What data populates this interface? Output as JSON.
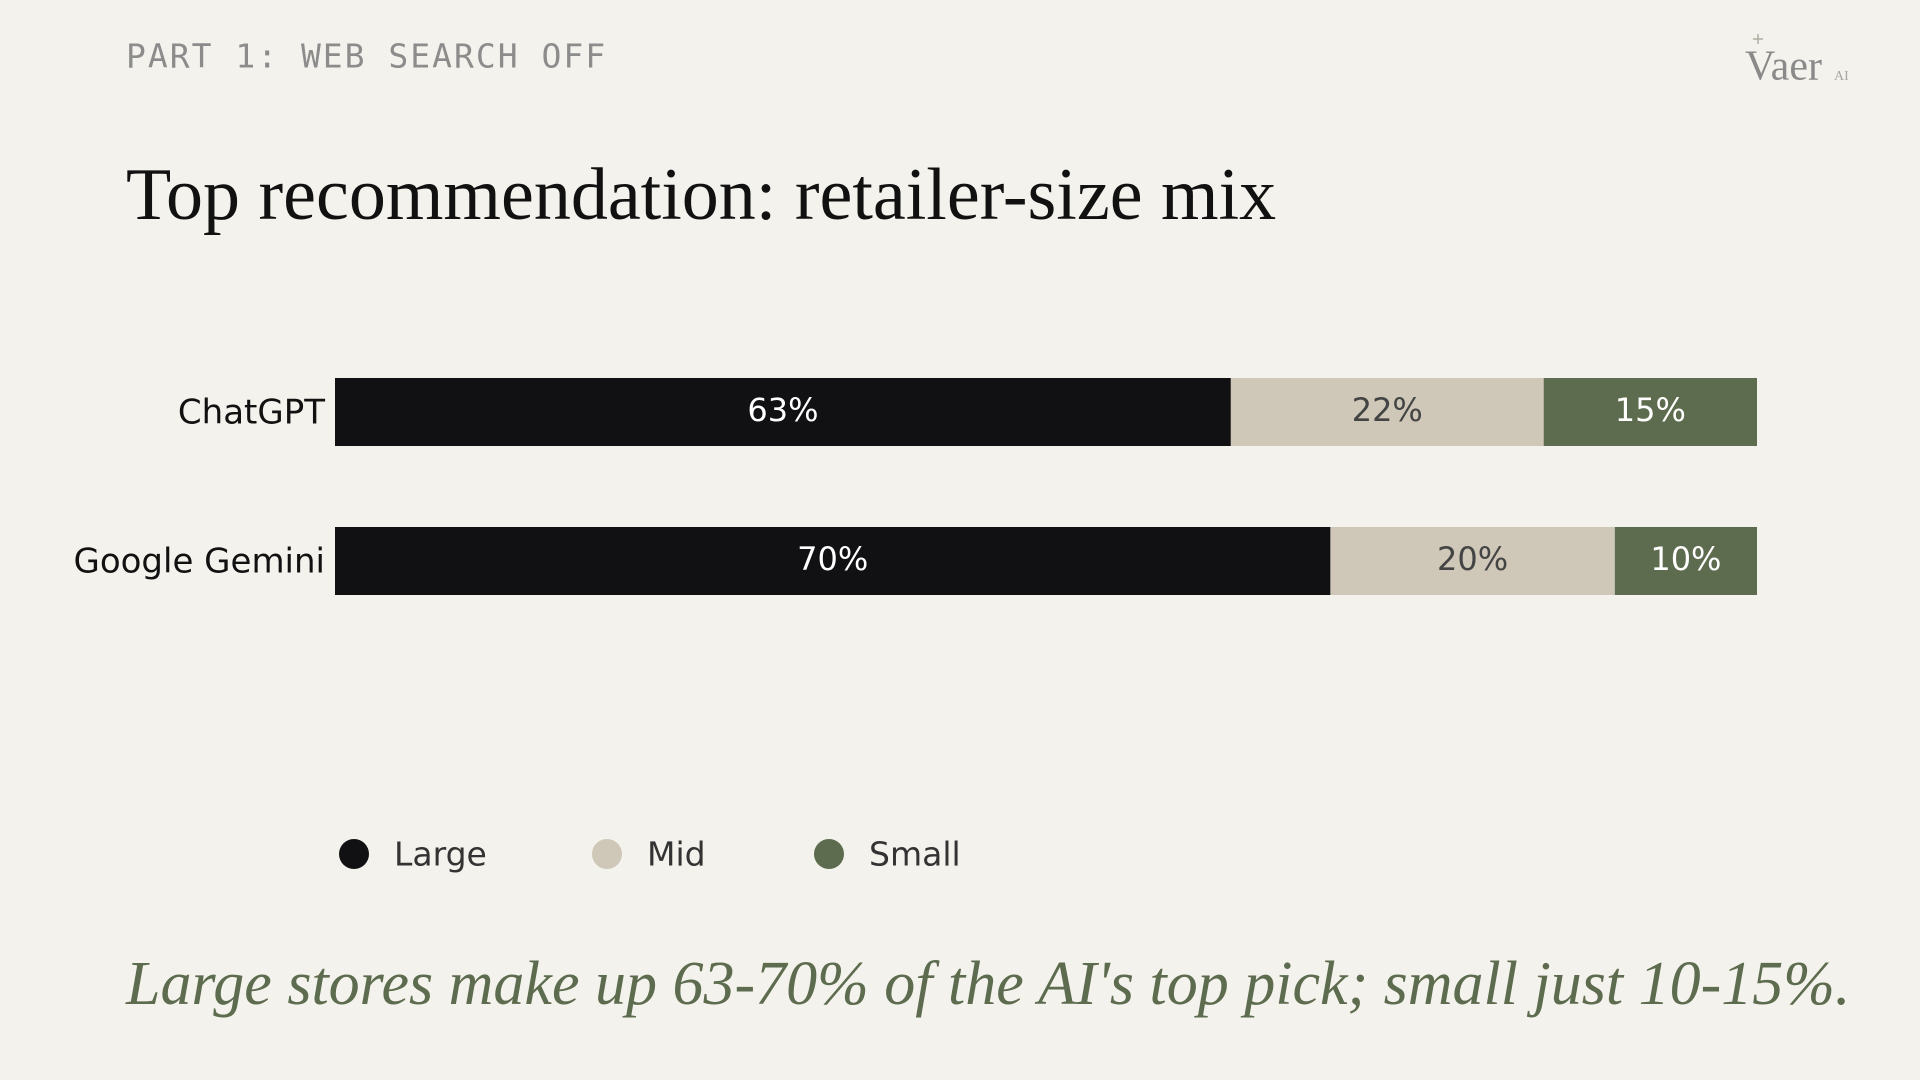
{
  "chart_data": {
    "type": "stacked-bar-horizontal",
    "supertitle": "PART 1: WEB SEARCH OFF",
    "title": "Top recommendation: retailer-size mix",
    "caption": "Large stores make up 63-70% of the AI's top pick; small just 10-15%.",
    "logo": "Vaer",
    "logo_badge": "AI",
    "categories": [
      "ChatGPT",
      "Google Gemini"
    ],
    "xlim": [
      0,
      100
    ],
    "series": [
      {
        "name": "Large",
        "color": "#111114",
        "label_color": "#ffffff",
        "values": [
          63,
          70
        ],
        "value_labels": [
          "63%",
          "70%"
        ]
      },
      {
        "name": "Mid",
        "color": "#cfc8b9",
        "label_color": "#444444",
        "values": [
          22,
          20
        ],
        "value_labels": [
          "22%",
          "20%"
        ]
      },
      {
        "name": "Small",
        "color": "#5d6b4e",
        "label_color": "#ffffff",
        "values": [
          15,
          10
        ],
        "value_labels": [
          "15%",
          "10%"
        ]
      }
    ]
  }
}
